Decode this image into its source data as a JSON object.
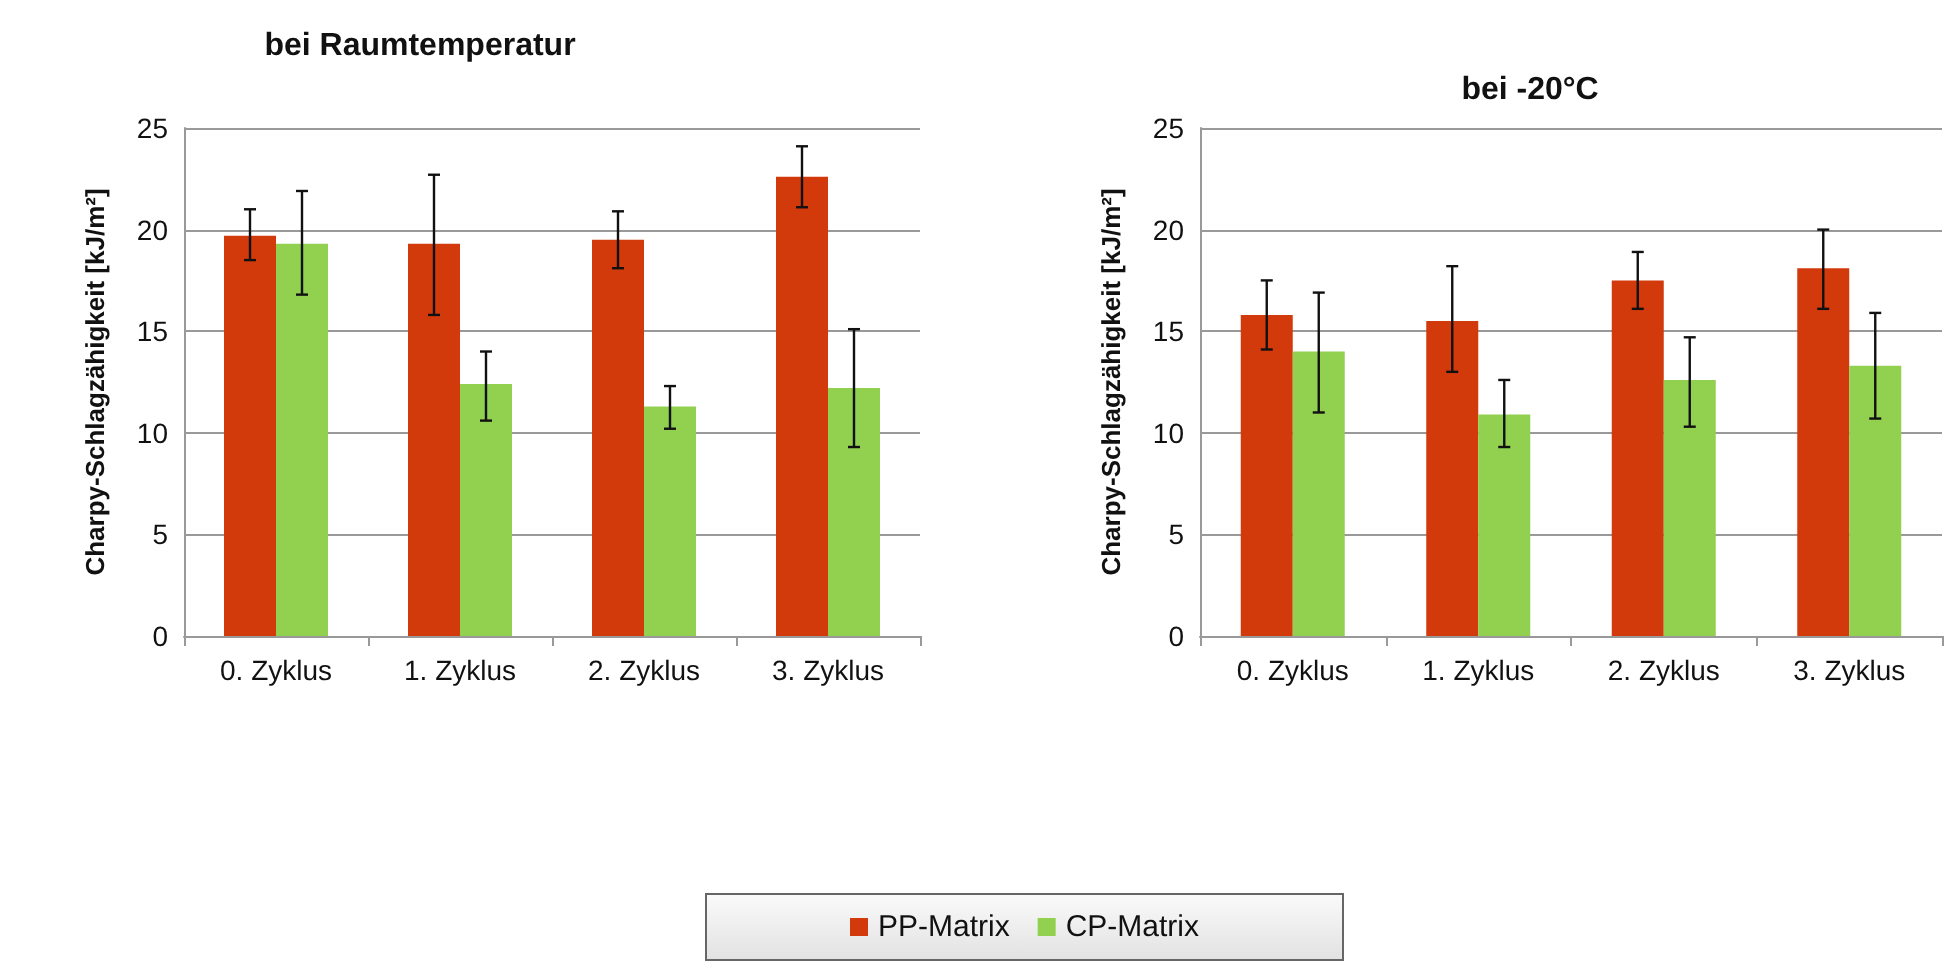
{
  "chart_data": [
    {
      "type": "bar",
      "title": "bei Raumtemperatur",
      "ylabel": "Charpy-Schlagzähigkeit [kJ/m²]",
      "categories": [
        "0. Zyklus",
        "1. Zyklus",
        "2. Zyklus",
        "3. Zyklus"
      ],
      "series": [
        {
          "name": "PP-Matrix",
          "color": "#d23a0c",
          "values": [
            19.7,
            19.3,
            19.5,
            22.6
          ],
          "errors": [
            [
              18.5,
              21.0
            ],
            [
              15.8,
              22.7
            ],
            [
              18.1,
              20.9
            ],
            [
              21.1,
              24.1
            ]
          ]
        },
        {
          "name": "CP-Matrix",
          "color": "#92d050",
          "values": [
            19.3,
            12.4,
            11.3,
            12.2
          ],
          "errors": [
            [
              16.8,
              21.9
            ],
            [
              10.6,
              14.0
            ],
            [
              10.2,
              12.3
            ],
            [
              9.3,
              15.1
            ]
          ]
        }
      ],
      "ylim": [
        0,
        25
      ],
      "yticks": [
        0,
        5,
        10,
        15,
        20,
        25
      ],
      "grid": "y",
      "legend": "bottom"
    },
    {
      "type": "bar",
      "title": "bei -20°C",
      "ylabel": "Charpy-Schlagzähigkeit [kJ/m²]",
      "categories": [
        "0. Zyklus",
        "1. Zyklus",
        "2. Zyklus",
        "3. Zyklus"
      ],
      "series": [
        {
          "color": "#d23a0c",
          "values": [
            15.8,
            15.5,
            17.5,
            18.1
          ],
          "errors": [
            [
              14.1,
              17.5
            ],
            [
              13.0,
              18.2
            ],
            [
              16.1,
              18.9
            ],
            [
              16.1,
              20.0
            ]
          ]
        },
        {
          "color": "#92d050",
          "values": [
            14.0,
            10.9,
            12.6,
            13.3
          ],
          "errors": [
            [
              11.0,
              16.9
            ],
            [
              9.3,
              12.6
            ],
            [
              10.3,
              14.7
            ],
            [
              10.7,
              15.9
            ]
          ]
        }
      ],
      "ylim": [
        0,
        25
      ],
      "yticks": [
        0,
        5,
        10,
        15,
        20,
        25
      ],
      "grid": "y"
    }
  ]
}
